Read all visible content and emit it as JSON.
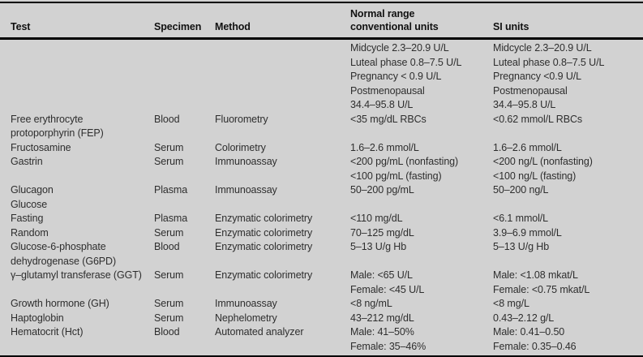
{
  "page": {
    "background_color": "#d2d2d2",
    "rule_color": "#000000",
    "text_color": "#2e2e2e"
  },
  "table": {
    "columns": [
      {
        "key": "test",
        "label": "Test"
      },
      {
        "key": "specimen",
        "label": "Specimen"
      },
      {
        "key": "method",
        "label": "Method"
      },
      {
        "key": "conventional",
        "label": "Normal range\nconventional units"
      },
      {
        "key": "si",
        "label": "SI units"
      }
    ],
    "rows": [
      {
        "test": "",
        "specimen": "",
        "method": "",
        "conventional": "Midcycle 2.3–20.9 U/L\nLuteal phase 0.8–7.5 U/L\nPregnancy < 0.9 U/L\nPostmenopausal\n34.4–95.8 U/L",
        "si": "Midcycle 2.3–20.9 U/L\nLuteal phase 0.8–7.5 U/L\nPregnancy <0.9 U/L\nPostmenopausal\n34.4–95.8 U/L"
      },
      {
        "test": "Free erythrocyte\nprotoporphyrin (FEP)",
        "specimen": "Blood",
        "method": "Fluorometry",
        "conventional": "<35 mg/dL RBCs",
        "si": "<0.62 mmol/L RBCs"
      },
      {
        "test": "Fructosamine",
        "specimen": "Serum",
        "method": "Colorimetry",
        "conventional": "1.6–2.6 mmol/L",
        "si": "1.6–2.6 mmol/L"
      },
      {
        "test": "Gastrin",
        "specimen": "Serum",
        "method": "Immunoassay",
        "conventional": "<200 pg/mL (nonfasting)\n<100 pg/mL (fasting)",
        "si": "<200 ng/L (nonfasting)\n<100 ng/L (fasting)"
      },
      {
        "test": "Glucagon",
        "specimen": "Plasma",
        "method": "Immunoassay",
        "conventional": "50–200 pg/mL",
        "si": "50–200 ng/L"
      },
      {
        "test": "Glucose",
        "specimen": "",
        "method": "",
        "conventional": "",
        "si": ""
      },
      {
        "test": "Fasting",
        "specimen": "Plasma",
        "method": "Enzymatic colorimetry",
        "conventional": "<110 mg/dL",
        "si": "<6.1 mmol/L"
      },
      {
        "test": "Random",
        "specimen": "Serum",
        "method": "Enzymatic colorimetry",
        "conventional": "70–125 mg/dL",
        "si": "3.9–6.9 mmol/L"
      },
      {
        "test": "Glucose-6-phosphate\ndehydrogenase (G6PD)",
        "specimen": "Blood",
        "method": "Enzymatic colorimetry",
        "conventional": "5–13 U/g Hb",
        "si": "5–13 U/g Hb"
      },
      {
        "test": "γ–glutamyl transferase (GGT)",
        "specimen": "Serum",
        "method": "Enzymatic colorimetry",
        "conventional": "Male: <65 U/L\nFemale: <45 U/L",
        "si": "Male: <1.08 mkat/L\nFemale: <0.75 mkat/L"
      },
      {
        "test": "Growth hormone (GH)",
        "specimen": "Serum",
        "method": "Immunoassay",
        "conventional": "<8 ng/mL",
        "si": "<8 mg/L"
      },
      {
        "test": "Haptoglobin",
        "specimen": "Serum",
        "method": "Nephelometry",
        "conventional": "43–212 mg/dL",
        "si": "0.43–2.12 g/L"
      },
      {
        "test": "Hematocrit (Hct)",
        "specimen": "Blood",
        "method": "Automated analyzer",
        "conventional": "Male: 41–50%\nFemale: 35–46%",
        "si": "Male: 0.41–0.50\nFemale: 0.35–0.46"
      }
    ]
  }
}
